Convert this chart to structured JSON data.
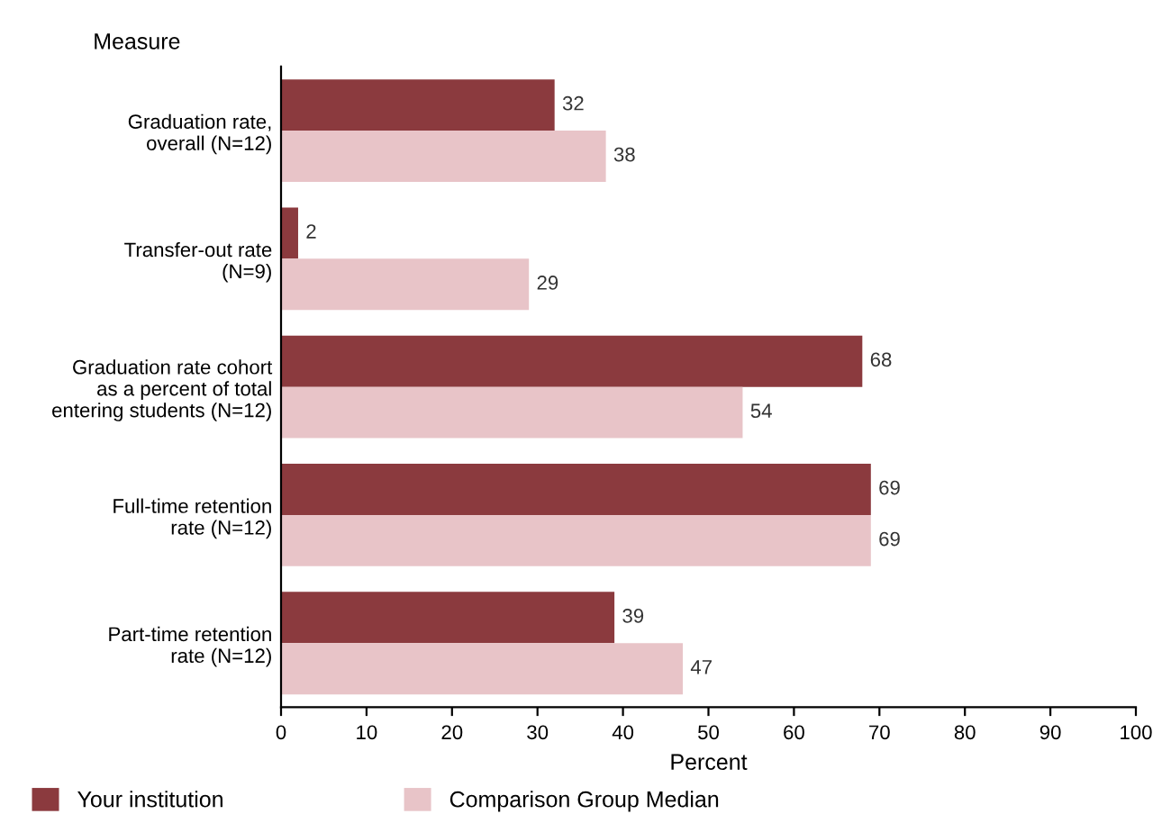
{
  "chart_data": {
    "type": "bar",
    "orientation": "horizontal",
    "ylabel": "Measure",
    "xlabel": "Percent",
    "categories": [
      "Graduation rate,\noverall (N=12)",
      "Transfer-out rate\n(N=9)",
      "Graduation rate cohort\nas a percent of total\nentering students (N=12)",
      "Full-time retention\nrate (N=12)",
      "Part-time retention\nrate (N=12)"
    ],
    "series": [
      {
        "name": "Your institution",
        "color": "#8b3a3e",
        "values": [
          32,
          2,
          68,
          69,
          39
        ]
      },
      {
        "name": "Comparison Group Median",
        "color": "#e8c4c8",
        "values": [
          38,
          29,
          54,
          69,
          47
        ]
      }
    ],
    "xlim": [
      0,
      100
    ],
    "xticks": [
      0,
      10,
      20,
      30,
      40,
      50,
      60,
      70,
      80,
      90,
      100
    ],
    "data_labels": true,
    "grid": false,
    "legend": "bottom left"
  }
}
